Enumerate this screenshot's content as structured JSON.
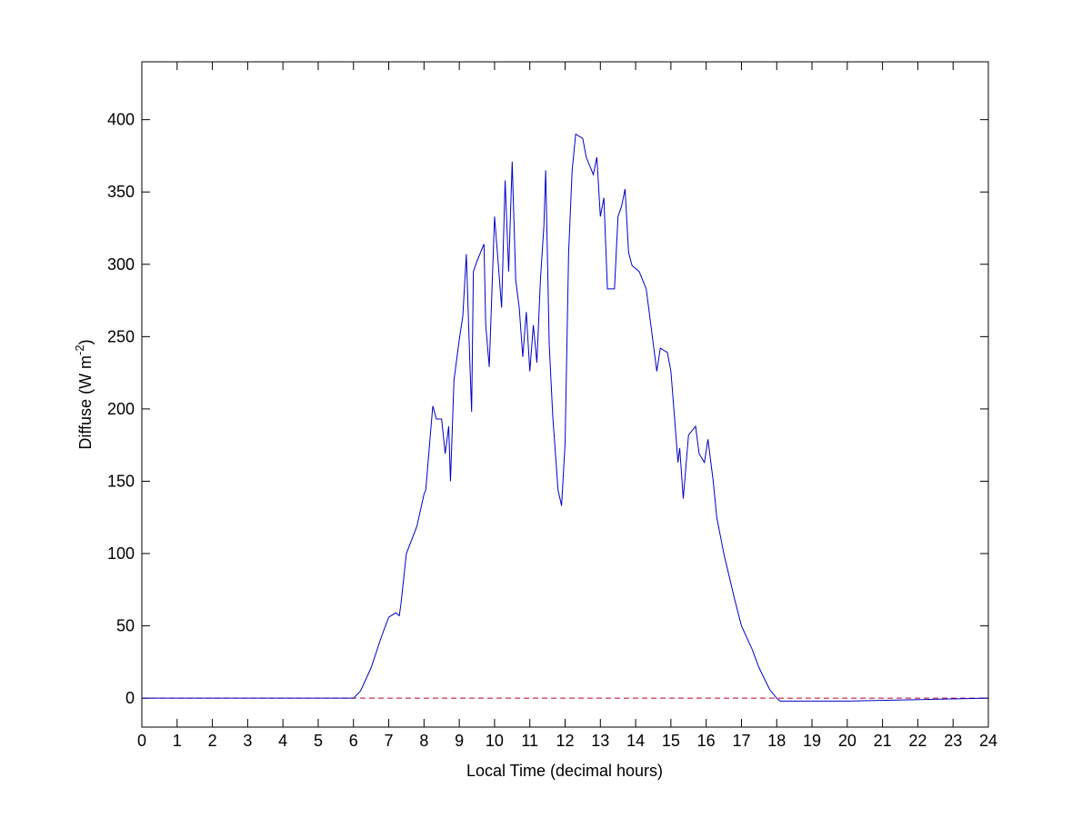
{
  "chart_data": {
    "type": "line",
    "xlabel": "Local Time (decimal hours)",
    "ylabel": {
      "text": "Diffuse (W m",
      "sup": "-2",
      "close": ")"
    },
    "xlim": [
      0,
      24
    ],
    "ylim": [
      -20,
      440
    ],
    "xticks": [
      0,
      1,
      2,
      3,
      4,
      5,
      6,
      7,
      8,
      9,
      10,
      11,
      12,
      13,
      14,
      15,
      16,
      17,
      18,
      19,
      20,
      21,
      22,
      23,
      24
    ],
    "yticks": [
      0,
      50,
      100,
      150,
      200,
      250,
      300,
      350,
      400
    ],
    "grid": false,
    "reference_line": {
      "value": 0,
      "color": "#c0002a",
      "style": "dashed"
    },
    "x": [
      0,
      6.0,
      6.2,
      6.5,
      6.8,
      7.0,
      7.2,
      7.3,
      7.35,
      7.5,
      7.8,
      8.0,
      8.05,
      8.2,
      8.25,
      8.35,
      8.5,
      8.6,
      8.7,
      8.75,
      8.85,
      9.0,
      9.1,
      9.2,
      9.3,
      9.35,
      9.4,
      9.5,
      9.7,
      9.75,
      9.85,
      10.0,
      10.1,
      10.2,
      10.3,
      10.4,
      10.5,
      10.6,
      10.7,
      10.8,
      10.9,
      11.0,
      11.1,
      11.2,
      11.3,
      11.4,
      11.45,
      11.55,
      11.65,
      11.8,
      11.9,
      12.0,
      12.1,
      12.2,
      12.3,
      12.5,
      12.6,
      12.8,
      12.9,
      13.0,
      13.1,
      13.2,
      13.4,
      13.5,
      13.6,
      13.7,
      13.8,
      13.9,
      14.1,
      14.2,
      14.3,
      14.5,
      14.6,
      14.7,
      14.9,
      15.0,
      15.1,
      15.2,
      15.25,
      15.35,
      15.5,
      15.7,
      15.8,
      15.95,
      16.05,
      16.2,
      16.3,
      16.5,
      16.8,
      17.0,
      17.3,
      17.5,
      17.8,
      18.0,
      18.1,
      20.0,
      24
    ],
    "series": [
      {
        "name": "Diffuse",
        "color": "#0000c8",
        "values": [
          0,
          0,
          5,
          21,
          43,
          56,
          59,
          57,
          66,
          100,
          119,
          141,
          144,
          188,
          202,
          193,
          193,
          169,
          188,
          150,
          220,
          248,
          264,
          307,
          232,
          198,
          295,
          302,
          314,
          258,
          229,
          333,
          302,
          270,
          358,
          295,
          371,
          289,
          270,
          236,
          267,
          226,
          258,
          232,
          289,
          327,
          365,
          245,
          195,
          144,
          133,
          176,
          308,
          365,
          390,
          387,
          374,
          362,
          374,
          333,
          346,
          283,
          283,
          333,
          340,
          352,
          308,
          299,
          295,
          289,
          283,
          245,
          226,
          242,
          239,
          226,
          195,
          163,
          173,
          138,
          182,
          188,
          169,
          163,
          179,
          150,
          125,
          100,
          69,
          50,
          34,
          21,
          6,
          0,
          -2,
          -2,
          0
        ]
      }
    ]
  }
}
